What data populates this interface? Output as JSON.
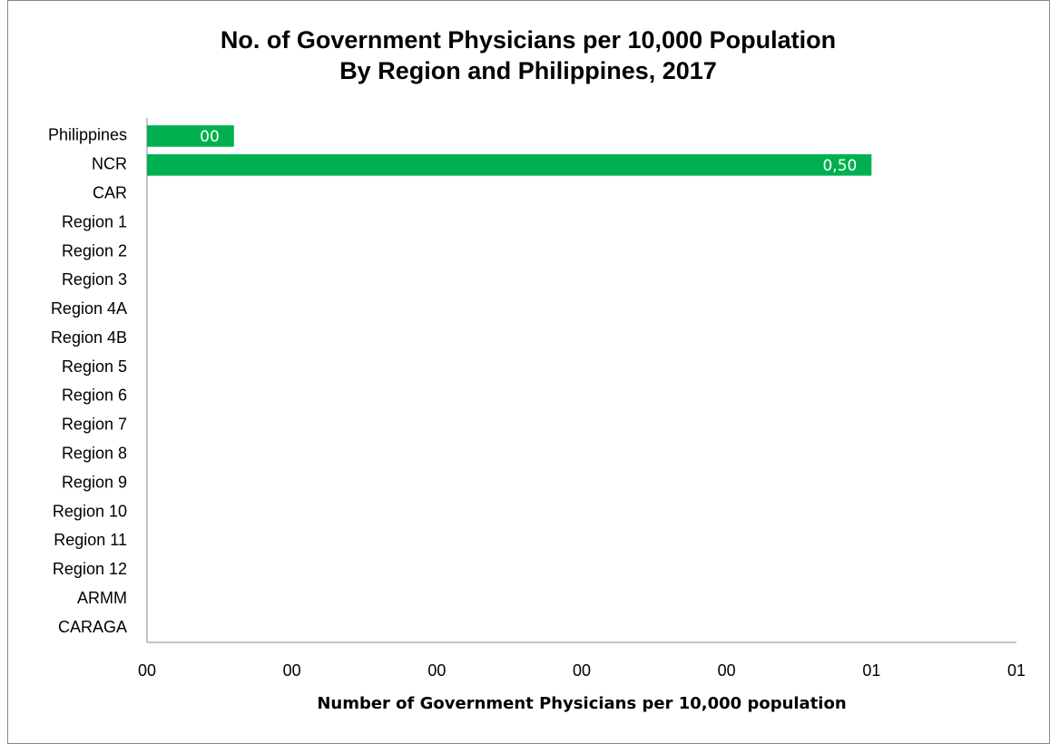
{
  "chart_data": {
    "type": "bar",
    "orientation": "horizontal",
    "title_lines": [
      "No. of Government Physicians per 10,000 Population",
      "By Region and Philippines, 2017"
    ],
    "x_label": "Number of Government Physicians per 10,000 population",
    "categories": [
      "Philippines",
      "NCR",
      "CAR",
      "Region 1",
      "Region 2",
      "Region 3",
      "Region 4A",
      "Region 4B",
      "Region 5",
      "Region 6",
      "Region 7",
      "Region 8",
      "Region 9",
      "Region 10",
      "Region 11",
      "Region 12",
      "ARMM",
      "CARAGA"
    ],
    "values": [
      0.06,
      0.5,
      null,
      null,
      null,
      null,
      null,
      null,
      null,
      null,
      null,
      null,
      null,
      null,
      null,
      null,
      null,
      null
    ],
    "value_labels": [
      "00",
      "0,50",
      null,
      null,
      null,
      null,
      null,
      null,
      null,
      null,
      null,
      null,
      null,
      null,
      null,
      null,
      null,
      null
    ],
    "color": "#00b050",
    "xlim": [
      0,
      0.6
    ],
    "xticks": [
      {
        "value": 0,
        "label": "00"
      },
      {
        "value": 0.1,
        "label": "00"
      },
      {
        "value": 0.2,
        "label": "00"
      },
      {
        "value": 0.3,
        "label": "00"
      },
      {
        "value": 0.4,
        "label": "00"
      },
      {
        "value": 0.5,
        "label": "01"
      },
      {
        "value": 0.6,
        "label": "01"
      }
    ],
    "grid": false
  }
}
